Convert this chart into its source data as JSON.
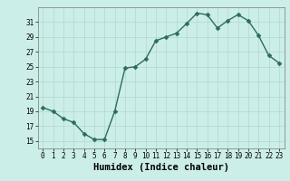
{
  "x": [
    0,
    1,
    2,
    3,
    4,
    5,
    6,
    7,
    8,
    9,
    10,
    11,
    12,
    13,
    14,
    15,
    16,
    17,
    18,
    19,
    20,
    21,
    22,
    23
  ],
  "y": [
    19.5,
    19.0,
    18.0,
    17.5,
    16.0,
    15.2,
    15.2,
    19.0,
    24.8,
    25.0,
    26.0,
    28.5,
    29.0,
    29.5,
    30.8,
    32.2,
    32.0,
    30.2,
    31.2,
    32.0,
    31.2,
    29.2,
    26.5,
    25.5
  ],
  "line_color": "#2e6b5e",
  "marker_color": "#2e6b5e",
  "bg_color": "#cceee8",
  "grid_color": "#aed8d0",
  "xlabel": "Humidex (Indice chaleur)",
  "ylim": [
    14,
    33
  ],
  "xlim": [
    -0.5,
    23.5
  ],
  "yticks": [
    15,
    17,
    19,
    21,
    23,
    25,
    27,
    29,
    31
  ],
  "xticks": [
    0,
    1,
    2,
    3,
    4,
    5,
    6,
    7,
    8,
    9,
    10,
    11,
    12,
    13,
    14,
    15,
    16,
    17,
    18,
    19,
    20,
    21,
    22,
    23
  ],
  "tick_label_size": 5.5,
  "xlabel_size": 7.5,
  "line_width": 1.0,
  "marker_size": 2.5
}
